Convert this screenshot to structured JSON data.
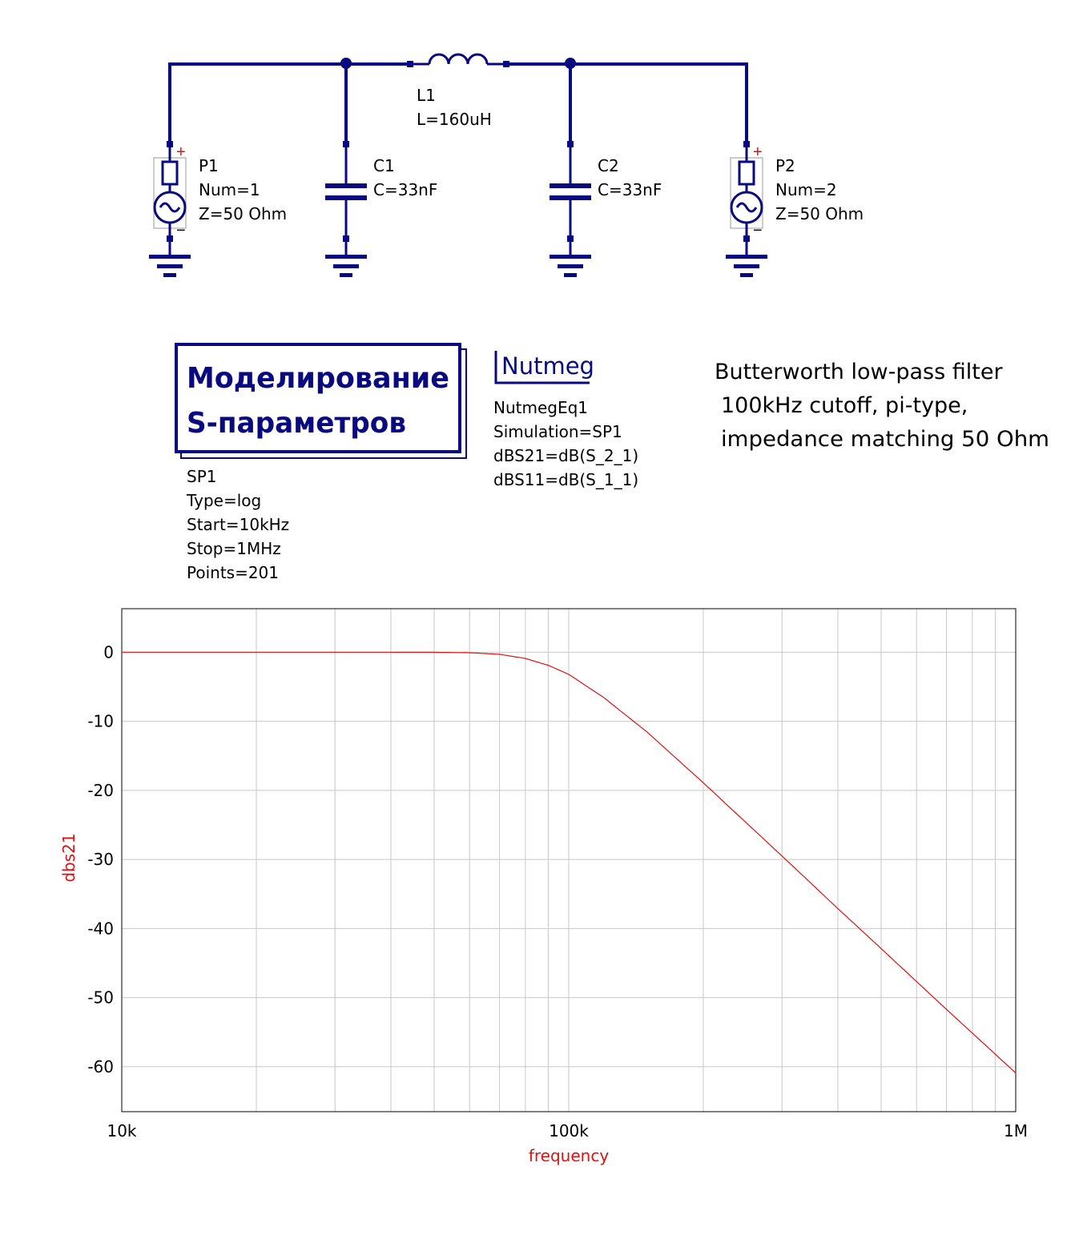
{
  "schematic": {
    "L1": {
      "name": "L1",
      "value": "L=160uH"
    },
    "C1": {
      "name": "C1",
      "value": "C=33nF"
    },
    "C2": {
      "name": "C2",
      "value": "C=33nF"
    },
    "P1": {
      "name": "P1",
      "num": "Num=1",
      "z": "Z=50 Ohm"
    },
    "P2": {
      "name": "P2",
      "num": "Num=2",
      "z": "Z=50 Ohm"
    },
    "plus_sign": "+",
    "minus_sign": "−"
  },
  "sim_block": {
    "title_line1": "Моделирование",
    "title_line2": "S-параметров",
    "name": "SP1",
    "type": "Type=log",
    "start": "Start=10kHz",
    "stop": "Stop=1MHz",
    "points": "Points=201"
  },
  "nutmeg": {
    "title": "Nutmeg",
    "name": "NutmegEq1",
    "simulation": "Simulation=SP1",
    "eq1": "dBS21=dB(S_2_1)",
    "eq2": "dBS11=dB(S_1_1)"
  },
  "note": {
    "line1": "Butterworth low-pass filter",
    "line2": "100kHz cutoff, pi-type,",
    "line3": "impedance matching 50 Ohm"
  },
  "colors": {
    "wire": "#0a0a80",
    "trace": "#e01010",
    "grid": "#c8c8c8",
    "port_sign": "#ff0000"
  },
  "chart_data": {
    "type": "line",
    "xlabel": "frequency",
    "ylabel": "dbs21",
    "x_scale": "log",
    "xlim": [
      10000,
      1000000
    ],
    "ylim": [
      -66.5,
      6.3
    ],
    "x_ticks": [
      {
        "value": 10000,
        "label": "10k"
      },
      {
        "value": 100000,
        "label": "100k"
      },
      {
        "value": 1000000,
        "label": "1M"
      }
    ],
    "y_ticks": [
      {
        "value": 0,
        "label": "0"
      },
      {
        "value": -10,
        "label": "-10"
      },
      {
        "value": -20,
        "label": "-20"
      },
      {
        "value": -30,
        "label": "-30"
      },
      {
        "value": -40,
        "label": "-40"
      },
      {
        "value": -50,
        "label": "-50"
      },
      {
        "value": -60,
        "label": "-60"
      }
    ],
    "grid": true,
    "series": [
      {
        "x": [
          10000,
          20000,
          30000,
          40000,
          50000,
          60000,
          70000,
          80000,
          90000,
          100000,
          120000,
          150000,
          200000,
          300000,
          400000,
          500000,
          700000,
          1000000
        ],
        "values": [
          0,
          0,
          0,
          0,
          -0.01,
          -0.07,
          -0.3,
          -0.9,
          -1.9,
          -3.2,
          -6.6,
          -11.6,
          -18.9,
          -29.5,
          -37.1,
          -42.9,
          -51.7,
          -60.9
        ]
      }
    ]
  }
}
